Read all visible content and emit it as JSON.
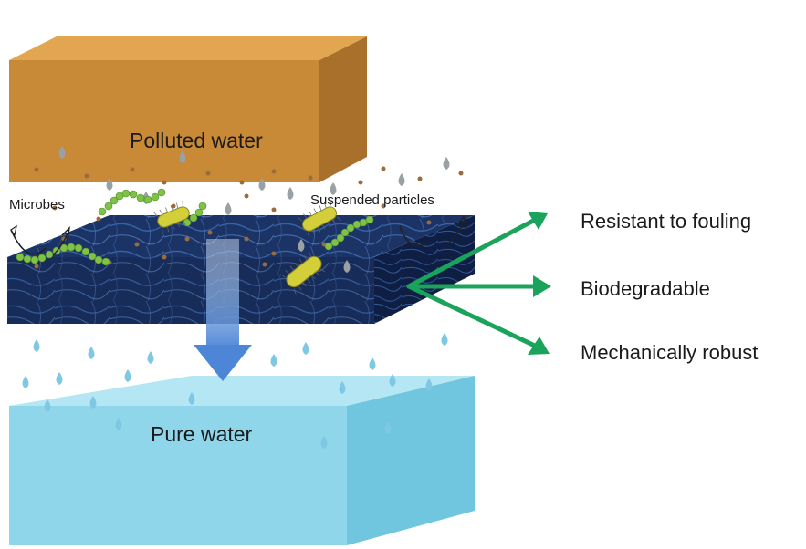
{
  "labels": {
    "polluted_water": "Polluted water",
    "pure_water": "Pure water",
    "microbes": "Microbes",
    "suspended_particles": "Suspended particles"
  },
  "properties": [
    {
      "label": "Resistant to fouling"
    },
    {
      "label": "Biodegradable"
    },
    {
      "label": "Mechanically robust"
    }
  ],
  "colors": {
    "polluted_top": "#e0a24a",
    "polluted_front": "#c88a36",
    "polluted_side": "#a8702a",
    "membrane": "#1a2f5e",
    "membrane_side": "#0f1c3a",
    "pure_top": "#aee4f2",
    "pure_front": "#8fd6ea",
    "pure_side": "#6cc3dc",
    "arrow_green": "#1aa35a",
    "flow_arrow": "#4d86d6",
    "particle": "#9a6b3c",
    "droplet_grey": "#9aa1a5",
    "droplet_blue": "#7fc8e3",
    "microbe_green": "#7fc246",
    "bacillus": "#d2cf3a"
  }
}
